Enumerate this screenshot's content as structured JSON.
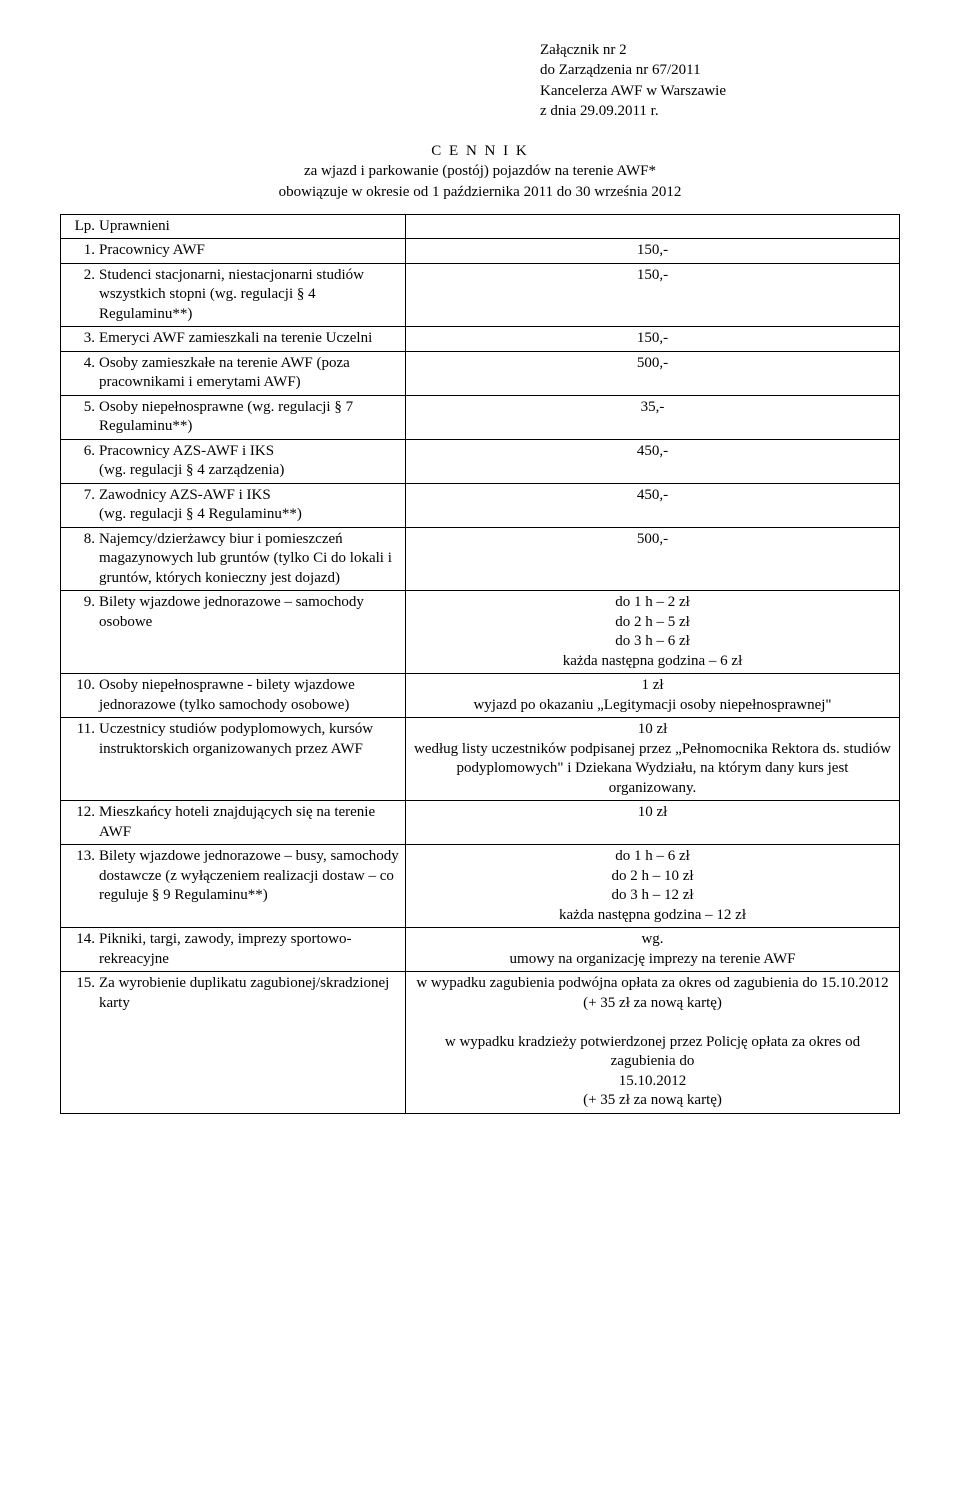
{
  "header": {
    "line1": "Załącznik nr 2",
    "line2": "do Zarządzenia nr 67/2011",
    "line3": "Kancelerza AWF w Warszawie",
    "line4": "z dnia 29.09.2011 r."
  },
  "title": {
    "main": "C E N N I K",
    "line2": "za wjazd i parkowanie (postój) pojazdów  na terenie AWF*",
    "line3": "obowiązuje w okresie od 1 października 2011 do 30 września 2012"
  },
  "cols": {
    "lp": "Lp.",
    "desc": "Uprawnieni"
  },
  "rows": [
    {
      "n": "1.",
      "d": "Pracownicy AWF",
      "v": "150,-"
    },
    {
      "n": "2.",
      "d": "Studenci stacjonarni, niestacjonarni studiów wszystkich stopni  (wg. regulacji  § 4 Regulaminu**)",
      "v": "150,-"
    },
    {
      "n": "3.",
      "d": "Emeryci AWF zamieszkali na terenie Uczelni",
      "v": "150,-"
    },
    {
      "n": "4.",
      "d": "Osoby zamieszkałe na terenie AWF (poza pracownikami i emerytami AWF)",
      "v": "500,-"
    },
    {
      "n": "5.",
      "d": "Osoby niepełnosprawne (wg. regulacji § 7 Regulaminu**)",
      "v": "35,-"
    },
    {
      "n": "6.",
      "d": "Pracownicy AZS-AWF i IKS\n(wg. regulacji  § 4 zarządzenia)",
      "v": "450,-"
    },
    {
      "n": "7.",
      "d": "Zawodnicy AZS-AWF i IKS\n(wg. regulacji  § 4 Regulaminu**)",
      "v": "450,-"
    },
    {
      "n": "8.",
      "d": "Najemcy/dzierżawcy biur i pomieszczeń magazynowych lub gruntów (tylko Ci do lokali i gruntów, których konieczny jest dojazd)",
      "v": "500,-"
    },
    {
      "n": "9.",
      "d": "Bilety wjazdowe jednorazowe – samochody osobowe",
      "v": "do 1 h  – 2 zł\ndo 2 h  – 5 zł\ndo 3 h – 6 zł\nkażda następna godzina – 6 zł"
    },
    {
      "n": "10.",
      "d": "Osoby niepełnosprawne - bilety wjazdowe jednorazowe (tylko samochody osobowe)",
      "v": "1 zł\nwyjazd po okazaniu  „Legitymacji osoby niepełnosprawnej\""
    },
    {
      "n": "11.",
      "d": "Uczestnicy studiów podyplomowych, kursów instruktorskich organizowanych przez AWF",
      "v": "10 zł\nwedług listy uczestników podpisanej przez „Pełnomocnika Rektora ds. studiów podyplomowych\"  i Dziekana Wydziału, na którym dany kurs jest organizowany."
    },
    {
      "n": "12.",
      "d": "Mieszkańcy hoteli znajdujących się na terenie AWF",
      "v": "10 zł"
    },
    {
      "n": "13.",
      "d": "Bilety wjazdowe jednorazowe – busy, samochody dostawcze (z wyłączeniem realizacji dostaw – co reguluje § 9 Regulaminu**)",
      "v": "do 1 h  – 6 zł\ndo 2 h  – 10 zł\ndo 3 h – 12 zł\nkażda następna godzina – 12 zł"
    },
    {
      "n": "14.",
      "d": "Pikniki, targi, zawody, imprezy sportowo-rekreacyjne",
      "v": "wg.\numowy na organizację imprezy na terenie AWF"
    },
    {
      "n": "15.",
      "d": "Za wyrobienie duplikatu zagubionej/skradzionej karty",
      "v": "w wypadku zagubienia podwójna opłata za okres od zagubienia do 15.10.2012\n(+ 35 zł za nową kartę)\n\nw wypadku kradzieży potwierdzonej przez Policję opłata za okres od zagubienia do\n15.10.2012\n(+ 35 zł za nową kartę)"
    }
  ]
}
